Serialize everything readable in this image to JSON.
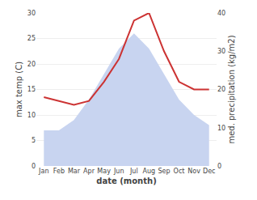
{
  "chart_data": {
    "type": "line",
    "xlabel": "date (month)",
    "ylabel": "max temp (C)",
    "y2label": "med. precipitation (kg/m2)",
    "categories": [
      "Jan",
      "Feb",
      "Mar",
      "Apr",
      "May",
      "Jun",
      "Jul",
      "Aug",
      "Sep",
      "Oct",
      "Nov",
      "Dec"
    ],
    "series": [
      {
        "type": "area",
        "color": "#c8d4f0",
        "values": [
          7,
          7,
          9,
          13,
          18,
          23,
          26,
          23,
          18,
          13,
          10,
          8
        ]
      },
      {
        "type": "line",
        "color": "#cc3333",
        "axis": "y2",
        "values": [
          18,
          17,
          16,
          17,
          22,
          28,
          38,
          40,
          30,
          22,
          20,
          20
        ]
      }
    ],
    "ylim": [
      0,
      30
    ],
    "yticks": [
      0,
      5,
      10,
      15,
      20,
      25,
      30
    ],
    "y2lim": [
      0,
      40
    ],
    "y2ticks": [
      0,
      10,
      20,
      30,
      40
    ],
    "grid": true
  }
}
